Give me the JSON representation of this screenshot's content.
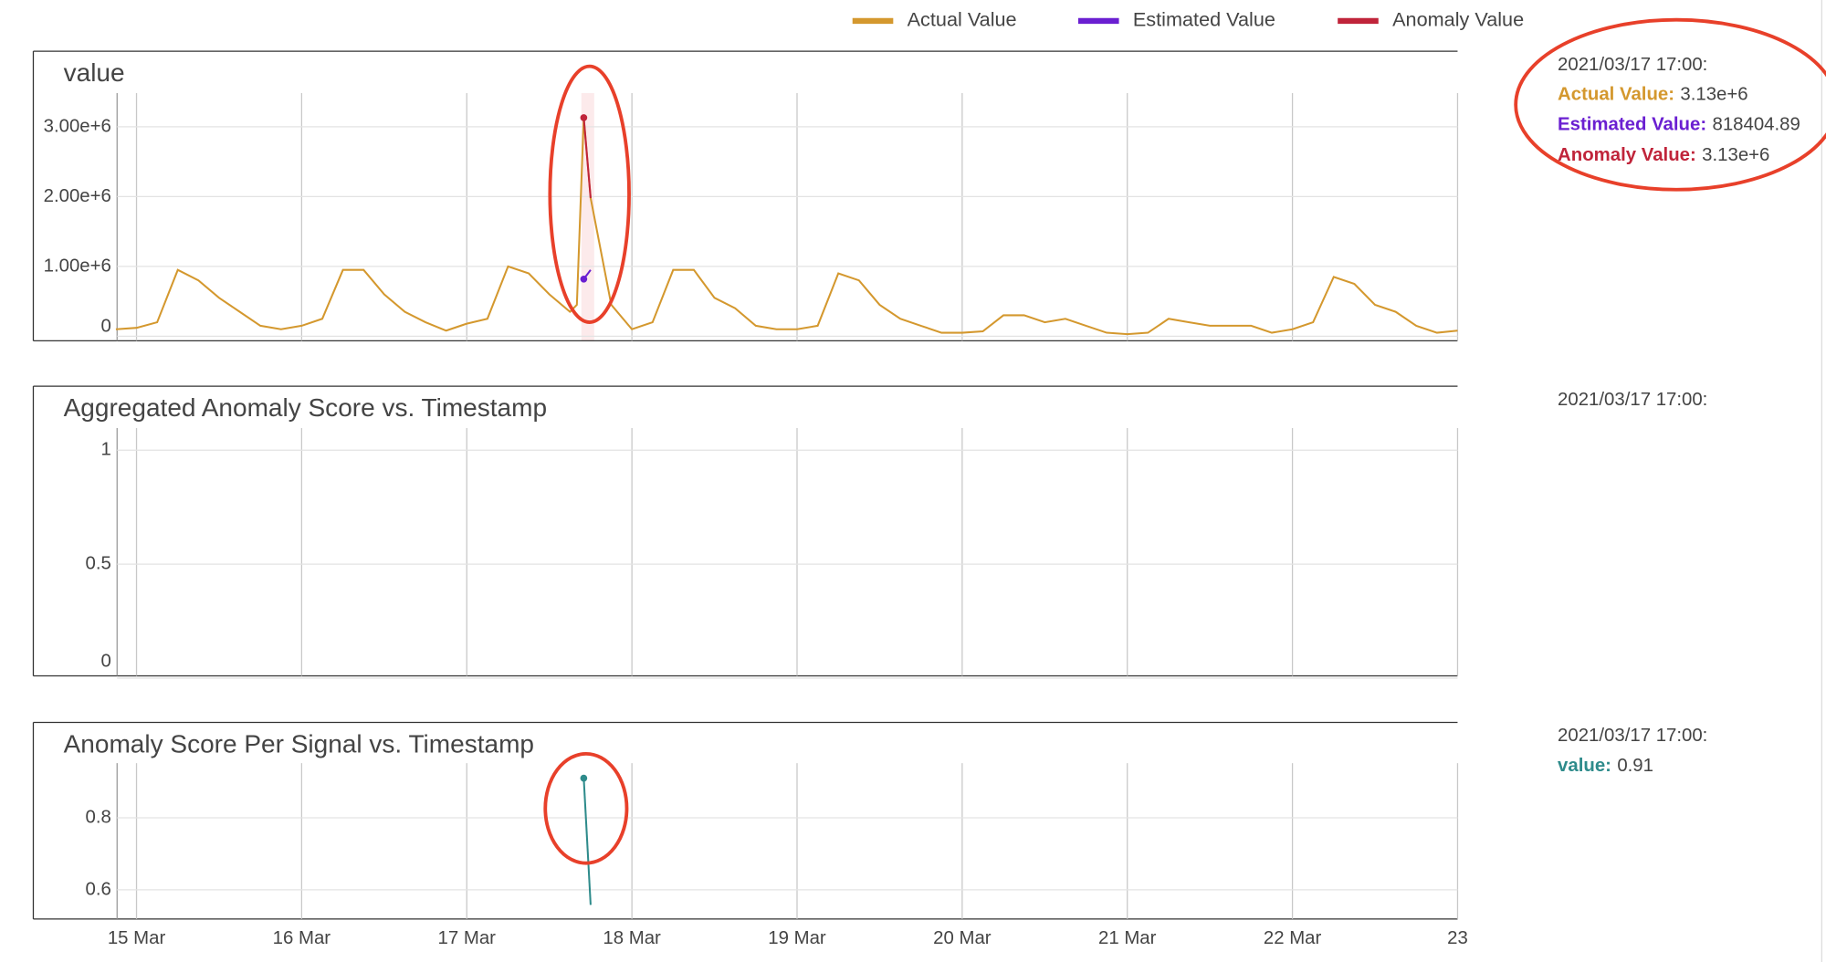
{
  "chart_data": [
    {
      "type": "line",
      "title": "value",
      "xlim": [
        "2021/03/14 09:00",
        "2021/03/23 00:00"
      ],
      "ylim": [
        -66000,
        3483000
      ],
      "yticks": [
        0,
        {
          "value": 1000000,
          "label": "1.00e+6"
        },
        {
          "value": 2000000,
          "label": "2.00e+6"
        },
        {
          "value": 3000000,
          "label": "3.00e+6"
        }
      ],
      "grid": true,
      "x": [
        "2021/03/14 21:00",
        "2021/03/15 00:00",
        "2021/03/15 03:00",
        "2021/03/15 06:00",
        "2021/03/15 09:00",
        "2021/03/15 12:00",
        "2021/03/15 15:00",
        "2021/03/15 18:00",
        "2021/03/15 21:00",
        "2021/03/16 00:00",
        "2021/03/16 03:00",
        "2021/03/16 06:00",
        "2021/03/16 09:00",
        "2021/03/16 12:00",
        "2021/03/16 15:00",
        "2021/03/16 18:00",
        "2021/03/16 21:00",
        "2021/03/17 00:00",
        "2021/03/17 03:00",
        "2021/03/17 06:00",
        "2021/03/17 09:00",
        "2021/03/17 12:00",
        "2021/03/17 15:00",
        "2021/03/17 16:00",
        "2021/03/17 17:00",
        "2021/03/17 18:00",
        "2021/03/17 21:00",
        "2021/03/18 00:00",
        "2021/03/18 03:00",
        "2021/03/18 06:00",
        "2021/03/18 09:00",
        "2021/03/18 12:00",
        "2021/03/18 15:00",
        "2021/03/18 18:00",
        "2021/03/18 21:00",
        "2021/03/19 00:00",
        "2021/03/19 03:00",
        "2021/03/19 06:00",
        "2021/03/19 09:00",
        "2021/03/19 12:00",
        "2021/03/19 15:00",
        "2021/03/19 18:00",
        "2021/03/19 21:00",
        "2021/03/20 00:00",
        "2021/03/20 03:00",
        "2021/03/20 06:00",
        "2021/03/20 09:00",
        "2021/03/20 12:00",
        "2021/03/20 15:00",
        "2021/03/20 18:00",
        "2021/03/20 21:00",
        "2021/03/21 00:00",
        "2021/03/21 03:00",
        "2021/03/21 06:00",
        "2021/03/21 09:00",
        "2021/03/21 12:00",
        "2021/03/21 15:00",
        "2021/03/21 18:00",
        "2021/03/21 21:00",
        "2021/03/22 00:00",
        "2021/03/22 03:00",
        "2021/03/22 06:00",
        "2021/03/22 09:00",
        "2021/03/22 12:00",
        "2021/03/22 15:00",
        "2021/03/22 18:00",
        "2021/03/22 21:00",
        "2021/03/23 00:00"
      ],
      "series": [
        {
          "name": "Actual Value",
          "color": "#d4982e",
          "values": [
            100000,
            120000,
            200000,
            950000,
            800000,
            550000,
            350000,
            150000,
            100000,
            150000,
            250000,
            950000,
            950000,
            600000,
            350000,
            200000,
            80000,
            180000,
            250000,
            1000000,
            900000,
            600000,
            350000,
            450000,
            3130000,
            1980000,
            450000,
            100000,
            200000,
            950000,
            950000,
            550000,
            400000,
            150000,
            100000,
            100000,
            150000,
            900000,
            800000,
            450000,
            250000,
            150000,
            50000,
            50000,
            70000,
            300000,
            300000,
            200000,
            250000,
            150000,
            50000,
            30000,
            50000,
            250000,
            200000,
            150000,
            150000,
            150000,
            50000,
            100000,
            200000,
            850000,
            750000,
            450000,
            350000,
            150000,
            50000,
            80000
          ]
        },
        {
          "name": "Estimated Value",
          "color": "#6a1fd1",
          "values": [
            null,
            null,
            null,
            null,
            null,
            null,
            null,
            null,
            null,
            null,
            null,
            null,
            null,
            null,
            null,
            null,
            null,
            null,
            null,
            null,
            null,
            null,
            null,
            null,
            818404.89,
            950000,
            null,
            null,
            null,
            null,
            null,
            null,
            null,
            null,
            null,
            null,
            null,
            null,
            null,
            null,
            null,
            null,
            null,
            null,
            null,
            null,
            null,
            null,
            null,
            null,
            null,
            null,
            null,
            null,
            null,
            null,
            null,
            null,
            null,
            null,
            null,
            null,
            null,
            null,
            null,
            null,
            null,
            null
          ]
        },
        {
          "name": "Anomaly Value",
          "color": "#c0243a",
          "values": [
            null,
            null,
            null,
            null,
            null,
            null,
            null,
            null,
            null,
            null,
            null,
            null,
            null,
            null,
            null,
            null,
            null,
            null,
            null,
            null,
            null,
            null,
            null,
            null,
            3130000,
            1980000,
            null,
            null,
            null,
            null,
            null,
            null,
            null,
            null,
            null,
            null,
            null,
            null,
            null,
            null,
            null,
            null,
            null,
            null,
            null,
            null,
            null,
            null,
            null,
            null,
            null,
            null,
            null,
            null,
            null,
            null,
            null,
            null,
            null,
            null,
            null,
            null,
            null,
            null,
            null,
            null,
            null,
            null
          ]
        }
      ],
      "hover": {
        "time": "2021/03/17 17:00:",
        "items": [
          {
            "name": "Actual Value:",
            "value": "3.13e+6",
            "color": "#d4982e"
          },
          {
            "name": "Estimated Value:",
            "value": "818404.89",
            "color": "#6a1fd1"
          },
          {
            "name": "Anomaly Value:",
            "value": "3.13e+6",
            "color": "#c0243a"
          }
        ]
      }
    },
    {
      "type": "line",
      "title": "Aggregated Anomaly Score vs. Timestamp",
      "xlim": [
        "2021/03/14 09:00",
        "2021/03/23 00:00"
      ],
      "ylim": [
        0.01,
        1.097
      ],
      "yticks": [
        0,
        0.5,
        1
      ],
      "grid": true,
      "hover": {
        "time": "2021/03/17 17:00:",
        "items": []
      }
    },
    {
      "type": "line",
      "title": "Anomaly Score Per Signal vs. Timestamp",
      "xlim": [
        "2021/03/14 09:00",
        "2021/03/23 00:00"
      ],
      "xticks": [
        {
          "value": "2021/03/15 00:00",
          "label": "15 Mar"
        },
        {
          "value": "2021/03/16 00:00",
          "label": "16 Mar"
        },
        {
          "value": "2021/03/17 00:00",
          "label": "17 Mar"
        },
        {
          "value": "2021/03/18 00:00",
          "label": "18 Mar"
        },
        {
          "value": "2021/03/19 00:00",
          "label": "19 Mar"
        },
        {
          "value": "2021/03/20 00:00",
          "label": "20 Mar"
        },
        {
          "value": "2021/03/21 00:00",
          "label": "21 Mar"
        },
        {
          "value": "2021/03/22 00:00",
          "label": "22 Mar"
        },
        {
          "value": "2021/03/23 00:00",
          "label": "23"
        }
      ],
      "ylim": [
        0.519,
        0.952
      ],
      "yticks": [
        0.6,
        0.8
      ],
      "grid": true,
      "x": [
        "2021/03/17 17:00",
        "2021/03/17 18:00"
      ],
      "series": [
        {
          "name": "value",
          "color": "#2e8b8b",
          "values": [
            0.91,
            0.558
          ]
        }
      ],
      "hover": {
        "time": "2021/03/17 17:00:",
        "items": [
          {
            "name": "value:",
            "value": "0.91",
            "color": "#2e8b8b"
          }
        ]
      }
    }
  ]
}
